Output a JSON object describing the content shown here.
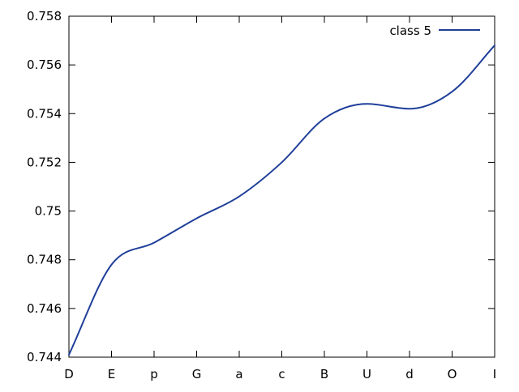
{
  "chart_data": {
    "type": "line",
    "categories": [
      "D",
      "E",
      "p",
      "G",
      "a",
      "c",
      "B",
      "U",
      "d",
      "O",
      "I"
    ],
    "ylim": [
      0.744,
      0.758
    ],
    "yticks": [
      "0.744",
      "0.746",
      "0.748",
      "0.75",
      "0.752",
      "0.754",
      "0.756",
      "0.758"
    ],
    "grid": false,
    "legend_position": "top-right",
    "series": [
      {
        "name": "class 5",
        "color": "#1f3f99",
        "values": [
          0.7441,
          0.7478,
          0.7487,
          0.7497,
          0.7506,
          0.752,
          0.7538,
          0.7544,
          0.7542,
          0.7549,
          0.7568
        ]
      }
    ]
  }
}
